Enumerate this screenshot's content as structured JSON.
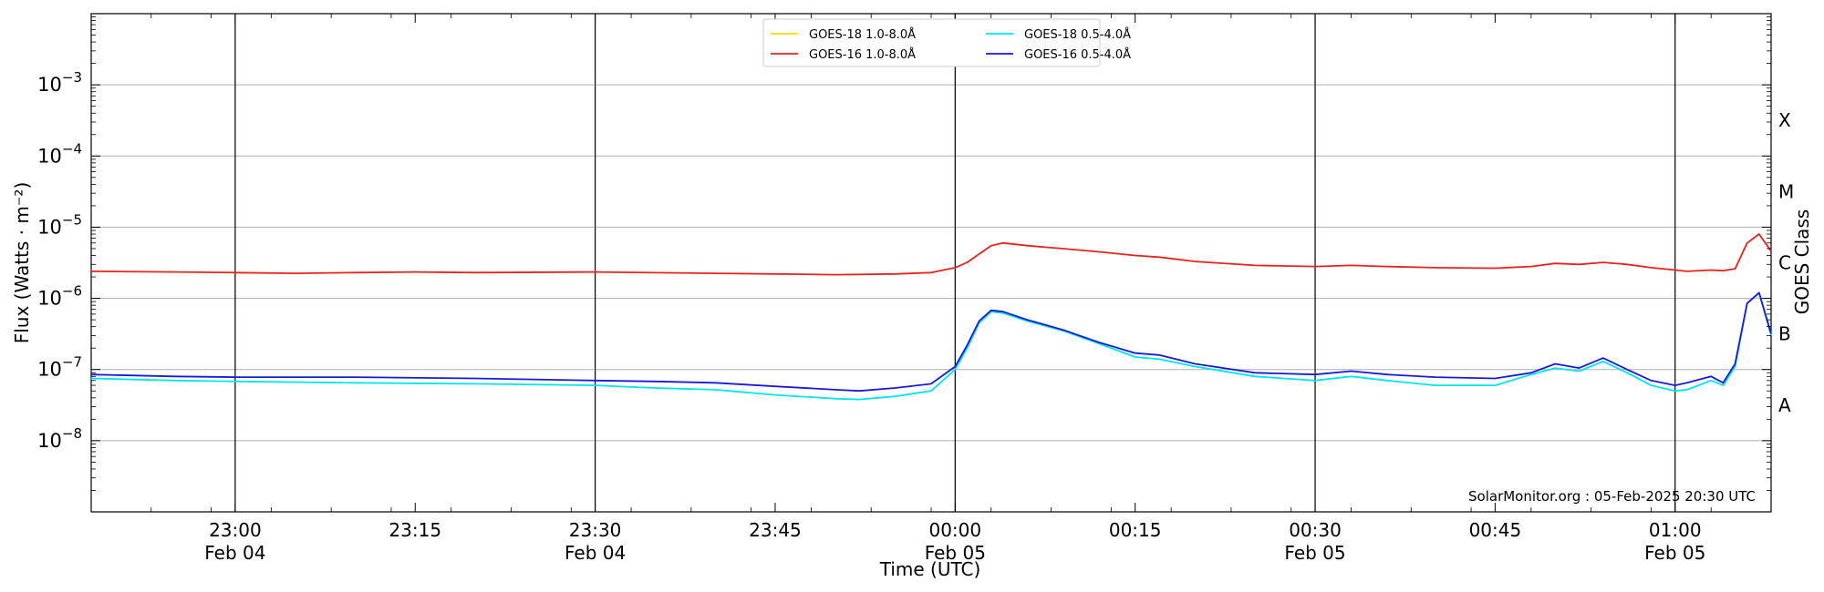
{
  "chart_data": {
    "type": "line",
    "title": "",
    "xlabel": "Time (UTC)",
    "ylabel": "Flux (Watts · m⁻²)",
    "ylabel_right": "GOES Class",
    "yscale": "log",
    "ylim": [
      1e-09,
      0.01
    ],
    "xlim": [
      "2025-02-04 22:48",
      "2025-02-05 01:08"
    ],
    "grid": "horizontal at decades; vertical at half-hours",
    "legend_position": "top-center",
    "annotation": "SolarMonitor.org : 05-Feb-2025 20:30 UTC",
    "y_ticks": [
      {
        "value": 1e-08,
        "mantissa": "10",
        "exp": "−8"
      },
      {
        "value": 1e-07,
        "mantissa": "10",
        "exp": "−7"
      },
      {
        "value": 1e-06,
        "mantissa": "10",
        "exp": "−6"
      },
      {
        "value": 1e-05,
        "mantissa": "10",
        "exp": "−5"
      },
      {
        "value": 0.0001,
        "mantissa": "10",
        "exp": "−4"
      },
      {
        "value": 0.001,
        "mantissa": "10",
        "exp": "−3"
      }
    ],
    "class_labels": [
      {
        "label": "A",
        "value": 3.16e-08
      },
      {
        "label": "B",
        "value": 3.16e-07
      },
      {
        "label": "C",
        "value": 3.16e-06
      },
      {
        "label": "M",
        "value": 3.16e-05
      },
      {
        "label": "X",
        "value": 0.000316
      }
    ],
    "x_ticks": [
      {
        "time": "2025-02-04 23:00",
        "label": "23:00",
        "sub": "Feb 04",
        "major": true
      },
      {
        "time": "2025-02-04 23:15",
        "label": "23:15",
        "sub": "",
        "major": false
      },
      {
        "time": "2025-02-04 23:30",
        "label": "23:30",
        "sub": "Feb 04",
        "major": true
      },
      {
        "time": "2025-02-04 23:45",
        "label": "23:45",
        "sub": "",
        "major": false
      },
      {
        "time": "2025-02-05 00:00",
        "label": "00:00",
        "sub": "Feb 05",
        "major": true
      },
      {
        "time": "2025-02-05 00:15",
        "label": "00:15",
        "sub": "",
        "major": false
      },
      {
        "time": "2025-02-05 00:30",
        "label": "00:30",
        "sub": "Feb 05",
        "major": true
      },
      {
        "time": "2025-02-05 00:45",
        "label": "00:45",
        "sub": "",
        "major": false
      },
      {
        "time": "2025-02-05 01:00",
        "label": "01:00",
        "sub": "Feb 05",
        "major": true
      }
    ],
    "series": [
      {
        "name": "GOES-18 1.0-8.0Å",
        "color": "#ffd700",
        "x": [],
        "y": []
      },
      {
        "name": "GOES-16 1.0-8.0Å",
        "color": "#e8231e",
        "x": [
          "2025-02-04 22:48",
          "2025-02-04 22:55",
          "2025-02-04 23:00",
          "2025-02-04 23:05",
          "2025-02-04 23:10",
          "2025-02-04 23:15",
          "2025-02-04 23:20",
          "2025-02-04 23:30",
          "2025-02-04 23:40",
          "2025-02-04 23:45",
          "2025-02-04 23:50",
          "2025-02-04 23:55",
          "2025-02-04 23:58",
          "2025-02-05 00:00",
          "2025-02-05 00:01",
          "2025-02-05 00:02",
          "2025-02-05 00:03",
          "2025-02-05 00:04",
          "2025-02-05 00:06",
          "2025-02-05 00:09",
          "2025-02-05 00:12",
          "2025-02-05 00:15",
          "2025-02-05 00:17",
          "2025-02-05 00:20",
          "2025-02-05 00:25",
          "2025-02-05 00:30",
          "2025-02-05 00:33",
          "2025-02-05 00:36",
          "2025-02-05 00:40",
          "2025-02-05 00:45",
          "2025-02-05 00:48",
          "2025-02-05 00:50",
          "2025-02-05 00:52",
          "2025-02-05 00:54",
          "2025-02-05 00:56",
          "2025-02-05 00:58",
          "2025-02-05 01:00",
          "2025-02-05 01:01",
          "2025-02-05 01:03",
          "2025-02-05 01:04",
          "2025-02-05 01:05",
          "2025-02-05 01:06",
          "2025-02-05 01:07",
          "2025-02-05 01:08"
        ],
        "y": [
          2.4e-06,
          2.35e-06,
          2.3e-06,
          2.25e-06,
          2.3e-06,
          2.35e-06,
          2.3e-06,
          2.35e-06,
          2.25e-06,
          2.2e-06,
          2.15e-06,
          2.2e-06,
          2.3e-06,
          2.7e-06,
          3.2e-06,
          4.2e-06,
          5.5e-06,
          6e-06,
          5.5e-06,
          5e-06,
          4.5e-06,
          4e-06,
          3.8e-06,
          3.3e-06,
          2.9e-06,
          2.8e-06,
          2.9e-06,
          2.8e-06,
          2.7e-06,
          2.65e-06,
          2.8e-06,
          3.1e-06,
          3e-06,
          3.2e-06,
          3e-06,
          2.7e-06,
          2.5e-06,
          2.4e-06,
          2.5e-06,
          2.45e-06,
          2.6e-06,
          6e-06,
          8e-06,
          4.6e-06
        ]
      },
      {
        "name": "GOES-18 0.5-4.0Å",
        "color": "#00e5ee",
        "x": [
          "2025-02-04 22:48",
          "2025-02-04 22:55",
          "2025-02-04 23:00",
          "2025-02-04 23:10",
          "2025-02-04 23:20",
          "2025-02-04 23:30",
          "2025-02-04 23:35",
          "2025-02-04 23:40",
          "2025-02-04 23:45",
          "2025-02-04 23:50",
          "2025-02-04 23:52",
          "2025-02-04 23:55",
          "2025-02-04 23:58",
          "2025-02-05 00:00",
          "2025-02-05 00:01",
          "2025-02-05 00:02",
          "2025-02-05 00:03",
          "2025-02-05 00:04",
          "2025-02-05 00:06",
          "2025-02-05 00:09",
          "2025-02-05 00:12",
          "2025-02-05 00:15",
          "2025-02-05 00:17",
          "2025-02-05 00:20",
          "2025-02-05 00:25",
          "2025-02-05 00:30",
          "2025-02-05 00:33",
          "2025-02-05 00:36",
          "2025-02-05 00:40",
          "2025-02-05 00:45",
          "2025-02-05 00:48",
          "2025-02-05 00:50",
          "2025-02-05 00:52",
          "2025-02-05 00:54",
          "2025-02-05 00:56",
          "2025-02-05 00:58",
          "2025-02-05 01:00",
          "2025-02-05 01:01",
          "2025-02-05 01:03",
          "2025-02-05 01:04",
          "2025-02-05 01:05",
          "2025-02-05 01:06",
          "2025-02-05 01:07",
          "2025-02-05 01:08"
        ],
        "y": [
          7.5e-08,
          7e-08,
          6.8e-08,
          6.5e-08,
          6.3e-08,
          6e-08,
          5.5e-08,
          5.2e-08,
          4.4e-08,
          3.9e-08,
          3.8e-08,
          4.2e-08,
          5e-08,
          1e-07,
          2e-07,
          4.5e-07,
          6.5e-07,
          6.2e-07,
          4.8e-07,
          3.5e-07,
          2.3e-07,
          1.5e-07,
          1.4e-07,
          1.1e-07,
          8e-08,
          7e-08,
          8e-08,
          7e-08,
          6e-08,
          6e-08,
          8.5e-08,
          1.05e-07,
          9.5e-08,
          1.3e-07,
          9e-08,
          6e-08,
          5e-08,
          5.2e-08,
          7e-08,
          6e-08,
          1.1e-07,
          8.5e-07,
          1.2e-06,
          3e-07
        ]
      },
      {
        "name": "GOES-16 0.5-4.0Å",
        "color": "#1a1adb",
        "x": [
          "2025-02-04 22:48",
          "2025-02-04 22:55",
          "2025-02-04 23:00",
          "2025-02-04 23:10",
          "2025-02-04 23:20",
          "2025-02-04 23:30",
          "2025-02-04 23:35",
          "2025-02-04 23:40",
          "2025-02-04 23:45",
          "2025-02-04 23:50",
          "2025-02-04 23:52",
          "2025-02-04 23:55",
          "2025-02-04 23:58",
          "2025-02-05 00:00",
          "2025-02-05 00:01",
          "2025-02-05 00:02",
          "2025-02-05 00:03",
          "2025-02-05 00:04",
          "2025-02-05 00:06",
          "2025-02-05 00:09",
          "2025-02-05 00:12",
          "2025-02-05 00:15",
          "2025-02-05 00:17",
          "2025-02-05 00:20",
          "2025-02-05 00:25",
          "2025-02-05 00:30",
          "2025-02-05 00:33",
          "2025-02-05 00:36",
          "2025-02-05 00:40",
          "2025-02-05 00:45",
          "2025-02-05 00:48",
          "2025-02-05 00:50",
          "2025-02-05 00:52",
          "2025-02-05 00:54",
          "2025-02-05 00:56",
          "2025-02-05 00:58",
          "2025-02-05 01:00",
          "2025-02-05 01:01",
          "2025-02-05 01:03",
          "2025-02-05 01:04",
          "2025-02-05 01:05",
          "2025-02-05 01:06",
          "2025-02-05 01:07",
          "2025-02-05 01:08"
        ],
        "y": [
          8.5e-08,
          8e-08,
          7.8e-08,
          7.8e-08,
          7.5e-08,
          7e-08,
          6.8e-08,
          6.5e-08,
          5.8e-08,
          5.2e-08,
          5e-08,
          5.5e-08,
          6.3e-08,
          1.1e-07,
          2.2e-07,
          4.8e-07,
          6.8e-07,
          6.5e-07,
          5e-07,
          3.6e-07,
          2.4e-07,
          1.7e-07,
          1.6e-07,
          1.2e-07,
          9e-08,
          8.5e-08,
          9.5e-08,
          8.5e-08,
          7.8e-08,
          7.5e-08,
          9e-08,
          1.2e-07,
          1.05e-07,
          1.45e-07,
          1e-07,
          7e-08,
          6e-08,
          6.5e-08,
          8e-08,
          6.5e-08,
          1.2e-07,
          8.5e-07,
          1.2e-06,
          3.2e-07
        ]
      }
    ]
  }
}
